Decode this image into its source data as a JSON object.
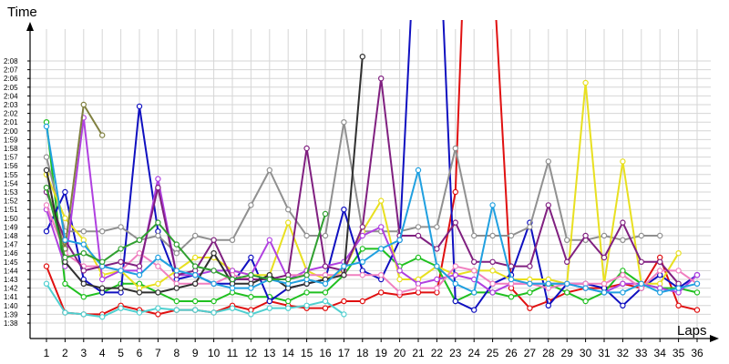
{
  "chart_data": {
    "type": "line",
    "xlabel": "Laps",
    "ylabel": "Time",
    "grid": true,
    "legend": "none",
    "x": [
      1,
      2,
      3,
      4,
      5,
      6,
      7,
      8,
      9,
      10,
      11,
      12,
      13,
      14,
      15,
      16,
      17,
      18,
      19,
      20,
      21,
      22,
      23,
      24,
      25,
      26,
      27,
      28,
      29,
      30,
      31,
      32,
      33,
      34,
      35,
      36
    ],
    "y_ticks": [
      "1:38",
      "1:39",
      "1:40",
      "1:41",
      "1:42",
      "1:43",
      "1:44",
      "1:45",
      "1:46",
      "1:47",
      "1:48",
      "1:49",
      "1:50",
      "1:51",
      "1:52",
      "1:53",
      "1:54",
      "1:55",
      "1:56",
      "1:57",
      "1:58",
      "1:59",
      "2:00",
      "2:01",
      "2:02",
      "2:03",
      "2:04",
      "2:05",
      "2:06",
      "2:07",
      "2:08"
    ],
    "ylim_seconds": [
      98,
      128
    ],
    "series": [
      {
        "color": "#e01010",
        "values": [
          104.5,
          99.2,
          99.0,
          99.0,
          100.0,
          99.5,
          99.0,
          99.5,
          99.5,
          99.2,
          100.0,
          99.5,
          100.5,
          100.0,
          99.7,
          99.7,
          100.5,
          100.5,
          101.5,
          101.2,
          101.5,
          101.5,
          113,
          170,
          140,
          102,
          99.7,
          100.5,
          101.5,
          102.0,
          102.0,
          102.5,
          102.0,
          105.5,
          100.0,
          99.5
        ]
      },
      {
        "color": "#20c020",
        "values": [
          121,
          102.5,
          101.0,
          101.5,
          102.5,
          102.5,
          101.5,
          100.5,
          100.5,
          100.5,
          101.5,
          101.0,
          101.0,
          100.5,
          101.5,
          101.5,
          103.5,
          106.5,
          106.5,
          104.5,
          105.5,
          104.5,
          100.5,
          101.5,
          101.5,
          101.0,
          101.5,
          102.5,
          101.5,
          100.5,
          101.5,
          104.0,
          102.5,
          102.0,
          102.0,
          101.5
        ]
      },
      {
        "color": "#1010c0",
        "values": [
          108.5,
          113.0,
          103.0,
          101.5,
          101.5,
          122.8,
          108.5,
          103.0,
          103.5,
          102.5,
          102.5,
          105.5,
          100.5,
          102.0,
          102.5,
          103.0,
          111.0,
          104.0,
          103.0,
          107.5,
          150,
          150,
          100.5,
          99.5,
          102.5,
          103.5,
          109.5,
          100.0,
          102.5,
          102.5,
          102.0,
          100.0,
          102.0,
          103.5,
          102.0,
          103.5
        ]
      },
      {
        "color": "#909090",
        "values": [
          117.0,
          108.5,
          108.5,
          108.5,
          109.0,
          107.5,
          108.0,
          106.0,
          108.0,
          107.5,
          107.5,
          111.5,
          115.5,
          111.0,
          108.0,
          108.0,
          121.0,
          108.5,
          108.5,
          108.5,
          109.0,
          109.0,
          118.0,
          108.0,
          108.0,
          108.0,
          109.0,
          116.5,
          107.5,
          107.5,
          108.0,
          107.5,
          108.0,
          108.0,
          null,
          null
        ]
      },
      {
        "color": "#e8e020",
        "values": [
          115.0,
          110.0,
          107.5,
          103.5,
          104.0,
          102.0,
          102.5,
          104.0,
          105.5,
          105.5,
          104.0,
          103.5,
          103.5,
          109.5,
          104.0,
          103.0,
          104.0,
          108.5,
          112.0,
          103.0,
          103.0,
          104.5,
          103.5,
          104.0,
          104.0,
          103.0,
          103.0,
          103.0,
          102.5,
          125.5,
          102.5,
          116.5,
          102.5,
          102.5,
          106.0,
          null
        ]
      },
      {
        "color": "#50d0d0",
        "values": [
          102.5,
          99.2,
          99.0,
          98.7,
          99.7,
          99.2,
          99.7,
          99.5,
          99.5,
          99.2,
          99.7,
          99.0,
          99.7,
          99.7,
          100.0,
          100.5,
          99.0,
          null,
          null,
          null,
          null,
          null,
          null,
          null,
          null,
          null,
          null,
          null,
          null,
          null,
          null,
          null,
          null,
          null,
          null,
          null
        ]
      },
      {
        "color": "#b040e0",
        "values": [
          111.0,
          104.5,
          121.5,
          103.0,
          104.0,
          104.0,
          114.5,
          103.5,
          103.5,
          104.0,
          104.0,
          103.5,
          107.5,
          103.0,
          104.0,
          104.5,
          105.0,
          108.0,
          109.0,
          104.0,
          102.5,
          103.0,
          103.5,
          103.0,
          101.5,
          102.5,
          102.5,
          102.5,
          102.5,
          102.0,
          101.5,
          102.5,
          102.5,
          102.0,
          101.5,
          103.5
        ]
      },
      {
        "color": "#f080c0",
        "values": [
          111.5,
          106.0,
          104.5,
          104.5,
          104.0,
          106.0,
          104.5,
          102.5,
          102.5,
          102.5,
          103.5,
          103.0,
          103.0,
          103.5,
          103.5,
          103.5,
          103.5,
          103.5,
          103.5,
          101.5,
          102.0,
          102.0,
          104.5,
          104.0,
          102.5,
          102.5,
          102.5,
          102.0,
          102.5,
          102.5,
          102.5,
          103.5,
          102.0,
          104.0,
          104.0,
          102.5
        ]
      },
      {
        "color": "#802080",
        "values": [
          113.0,
          107.5,
          104.0,
          104.5,
          105.0,
          104.5,
          113.5,
          103.5,
          104.0,
          107.5,
          103.0,
          103.0,
          103.0,
          103.5,
          118.0,
          104.5,
          104.0,
          109.0,
          126.0,
          108.0,
          108.0,
          106.5,
          109.5,
          105.0,
          105.0,
          104.5,
          104.5,
          111.5,
          105.0,
          108.0,
          105.5,
          109.5,
          105.0,
          105.0,
          102.5,
          null
        ]
      },
      {
        "color": "#808040",
        "values": [
          113.5,
          106.5,
          123.0,
          119.5,
          null,
          null,
          null,
          null,
          null,
          null,
          null,
          null,
          null,
          null,
          null,
          null,
          null,
          null,
          null,
          null,
          null,
          null,
          null,
          null,
          null,
          null,
          null,
          null,
          null,
          null,
          null,
          null,
          null,
          null,
          null,
          null
        ]
      },
      {
        "color": "#303030",
        "values": [
          115.5,
          105.0,
          102.5,
          102.0,
          102.0,
          101.5,
          101.5,
          102.0,
          102.5,
          106.0,
          102.5,
          102.5,
          103.5,
          102.0,
          102.5,
          103.0,
          103.5,
          128.5,
          null,
          null,
          null,
          null,
          null,
          null,
          null,
          null,
          null,
          null,
          null,
          null,
          null,
          null,
          null,
          null,
          null,
          null
        ]
      },
      {
        "color": "#20a0e0",
        "values": [
          120.5,
          107.5,
          107.0,
          104.5,
          104.0,
          103.5,
          105.5,
          104.0,
          103.5,
          102.5,
          102.0,
          102.0,
          103.0,
          102.5,
          103.0,
          102.5,
          104.5,
          105.0,
          106.5,
          107.5,
          115.5,
          104.5,
          102.5,
          101.5,
          111.5,
          103.0,
          102.5,
          102.5,
          102.5,
          102.0,
          101.5,
          101.5,
          102.5,
          101.5,
          102.0,
          102.5
        ]
      },
      {
        "color": "#30a030",
        "values": [
          113.5,
          105.5,
          106.0,
          105.0,
          106.5,
          107.5,
          109.5,
          107.0,
          104.5,
          104.0,
          103.0,
          103.5,
          103.0,
          103.0,
          103.5,
          110.5,
          null,
          null,
          null,
          null,
          null,
          null,
          null,
          null,
          null,
          null,
          null,
          null,
          null,
          null,
          null,
          null,
          null,
          null,
          null,
          null
        ]
      }
    ]
  }
}
